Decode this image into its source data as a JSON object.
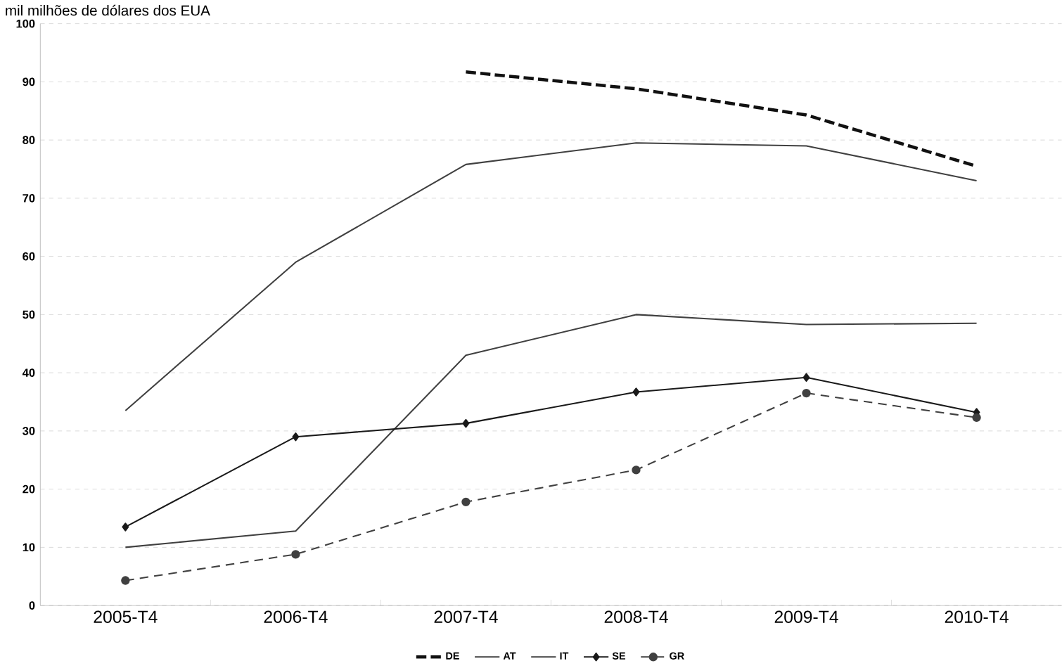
{
  "chart_data": {
    "type": "line",
    "ylabel": "mil milhões de dólares dos EUA",
    "categories": [
      "2005-T4",
      "2006-T4",
      "2007-T4",
      "2008-T4",
      "2009-T4",
      "2010-T4"
    ],
    "ylim": [
      0,
      100
    ],
    "yticks": [
      0,
      10,
      20,
      30,
      40,
      50,
      60,
      70,
      80,
      90,
      100
    ],
    "grid": "y",
    "legend": "bottom",
    "series": [
      {
        "name": "DE",
        "color": "#111111",
        "line_style": "dashed",
        "marker": "none",
        "values": [
          null,
          null,
          91.7,
          88.8,
          84.3,
          75.5
        ]
      },
      {
        "name": "AT",
        "color": "#404040",
        "line_style": "solid",
        "marker": "none",
        "values": [
          33.5,
          59,
          75.8,
          79.5,
          79,
          73
        ]
      },
      {
        "name": "IT",
        "color": "#404040",
        "line_style": "solid",
        "marker": "none",
        "values": [
          10,
          12.8,
          43,
          50,
          48.3,
          48.5
        ]
      },
      {
        "name": "SE",
        "color": "#1a1a1a",
        "line_style": "solid",
        "marker": "diamond",
        "values": [
          13.5,
          29,
          31.3,
          36.7,
          39.2,
          33.2
        ]
      },
      {
        "name": "GR",
        "color": "#404040",
        "line_style": "dashed",
        "marker": "circle",
        "values": [
          4.3,
          8.8,
          17.8,
          23.3,
          36.5,
          32.3
        ]
      }
    ]
  }
}
